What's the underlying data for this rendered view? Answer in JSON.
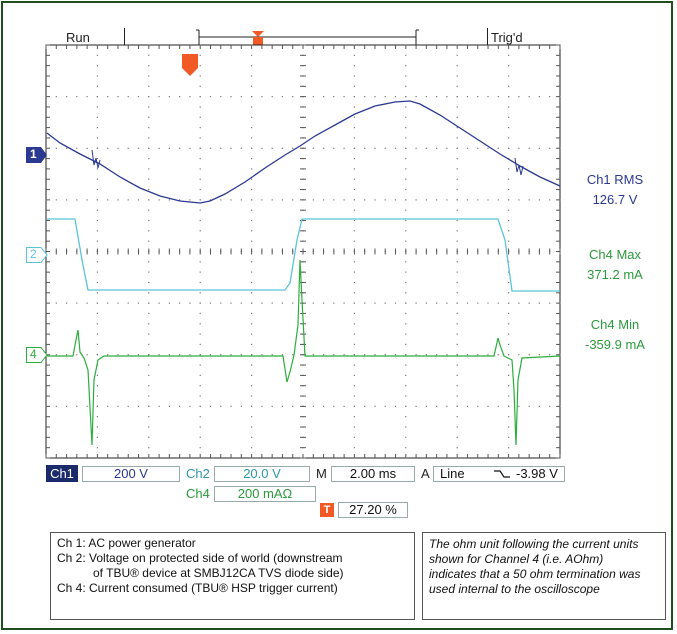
{
  "header": {
    "run": "Run",
    "trigd": "Trig'd"
  },
  "measurements": {
    "ch1_rms_label": "Ch1 RMS",
    "ch1_rms_value": "126.7 V",
    "ch4_max_label": "Ch4 Max",
    "ch4_max_value": "371.2 mA",
    "ch4_min_label": "Ch4 Min",
    "ch4_min_value": "-359.9 mA"
  },
  "markers": {
    "ch1": "1",
    "ch2": "2",
    "ch4": "4",
    "trigger": "T"
  },
  "settings": {
    "ch1_label": "Ch1",
    "ch1_scale": "200 V",
    "ch2_label": "Ch2",
    "ch2_scale": "20.0 V",
    "ch4_label": "Ch4",
    "ch4_scale": "200 mAΩ",
    "timebase_label": "M",
    "timebase_value": "2.00 ms",
    "trigger_label": "A",
    "trigger_source": "Line",
    "trigger_level": "-3.98 V",
    "trigger_position": "27.20 %"
  },
  "legend": [
    "Ch 1:  AC power generator",
    "Ch 2:  Voltage on protected side of world (downstream",
    "of TBU® device at SMBJ12CA TVS diode side)",
    "Ch 4:  Current consumed (TBU® HSP trigger current)"
  ],
  "note": [
    "The ohm unit following the current units",
    "shown for Channel 4 (i.e. AOhm)",
    "indicates that a 50 ohm termination was",
    "used internal to the oscilloscope"
  ],
  "colors": {
    "ch1": "#2b3990",
    "ch2": "#5bc4d8",
    "ch4": "#2bae3c",
    "trigger": "#f15a24",
    "frame": "#1f4e1f"
  }
}
